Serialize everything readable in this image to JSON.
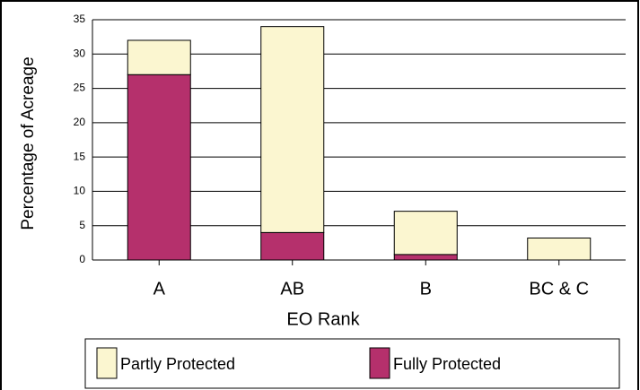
{
  "chart_data": {
    "type": "stacked_bar",
    "x_label": "EO Rank",
    "y_label": "Percentage of Acreage",
    "categories": [
      "A",
      "AB",
      "B",
      "BC & C"
    ],
    "series": [
      {
        "name": "Partly Protected",
        "color": "#fbf6d0",
        "values": [
          5,
          30,
          6.3,
          3.2
        ]
      },
      {
        "name": "Fully Protected",
        "color": "#b5306c",
        "values": [
          27,
          4,
          0.8,
          0
        ]
      }
    ],
    "ylim": [
      0,
      35
    ],
    "yticks": [
      0,
      5,
      10,
      15,
      20,
      25,
      30,
      35
    ],
    "grid": true
  }
}
